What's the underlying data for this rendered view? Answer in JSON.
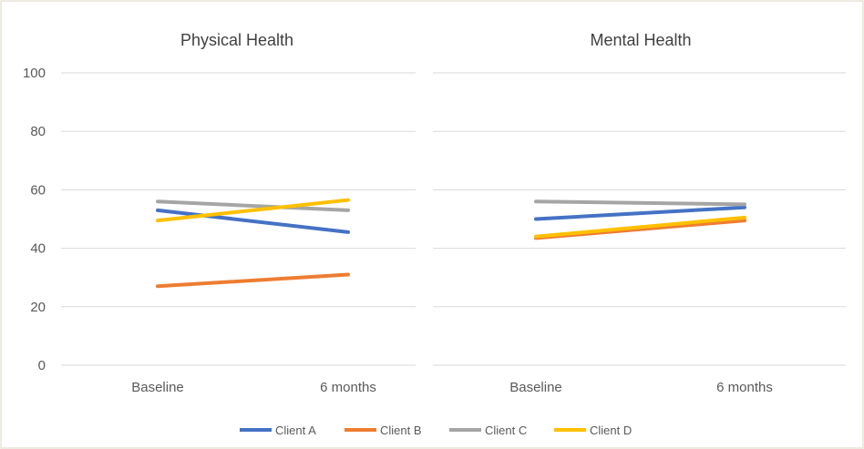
{
  "chart_data": [
    {
      "type": "line",
      "title": "Physical Health",
      "categories": [
        "Baseline",
        "6 months"
      ],
      "ylim": [
        0,
        100
      ],
      "yticks": [
        0,
        20,
        40,
        60,
        80,
        100
      ],
      "grid": true,
      "series": [
        {
          "name": "Client A",
          "values": [
            53,
            45.5
          ]
        },
        {
          "name": "Client B",
          "values": [
            27,
            31
          ]
        },
        {
          "name": "Client C",
          "values": [
            56,
            53
          ]
        },
        {
          "name": "Client D",
          "values": [
            49.5,
            56.5
          ]
        }
      ]
    },
    {
      "type": "line",
      "title": "Mental Health",
      "categories": [
        "Baseline",
        "6 months"
      ],
      "ylim": [
        0,
        100
      ],
      "yticks": [
        0,
        20,
        40,
        60,
        80,
        100
      ],
      "grid": true,
      "series": [
        {
          "name": "Client A",
          "values": [
            50,
            54
          ]
        },
        {
          "name": "Client B",
          "values": [
            43.5,
            49.5
          ]
        },
        {
          "name": "Client C",
          "values": [
            56,
            55
          ]
        },
        {
          "name": "Client D",
          "values": [
            44,
            50.5
          ]
        }
      ]
    }
  ],
  "legend": {
    "placement": "bottom",
    "entries": [
      {
        "label": "Client A",
        "color": "#4472c4"
      },
      {
        "label": "Client B",
        "color": "#ed7d31"
      },
      {
        "label": "Client C",
        "color": "#a5a5a5"
      },
      {
        "label": "Client D",
        "color": "#ffc000"
      }
    ]
  }
}
